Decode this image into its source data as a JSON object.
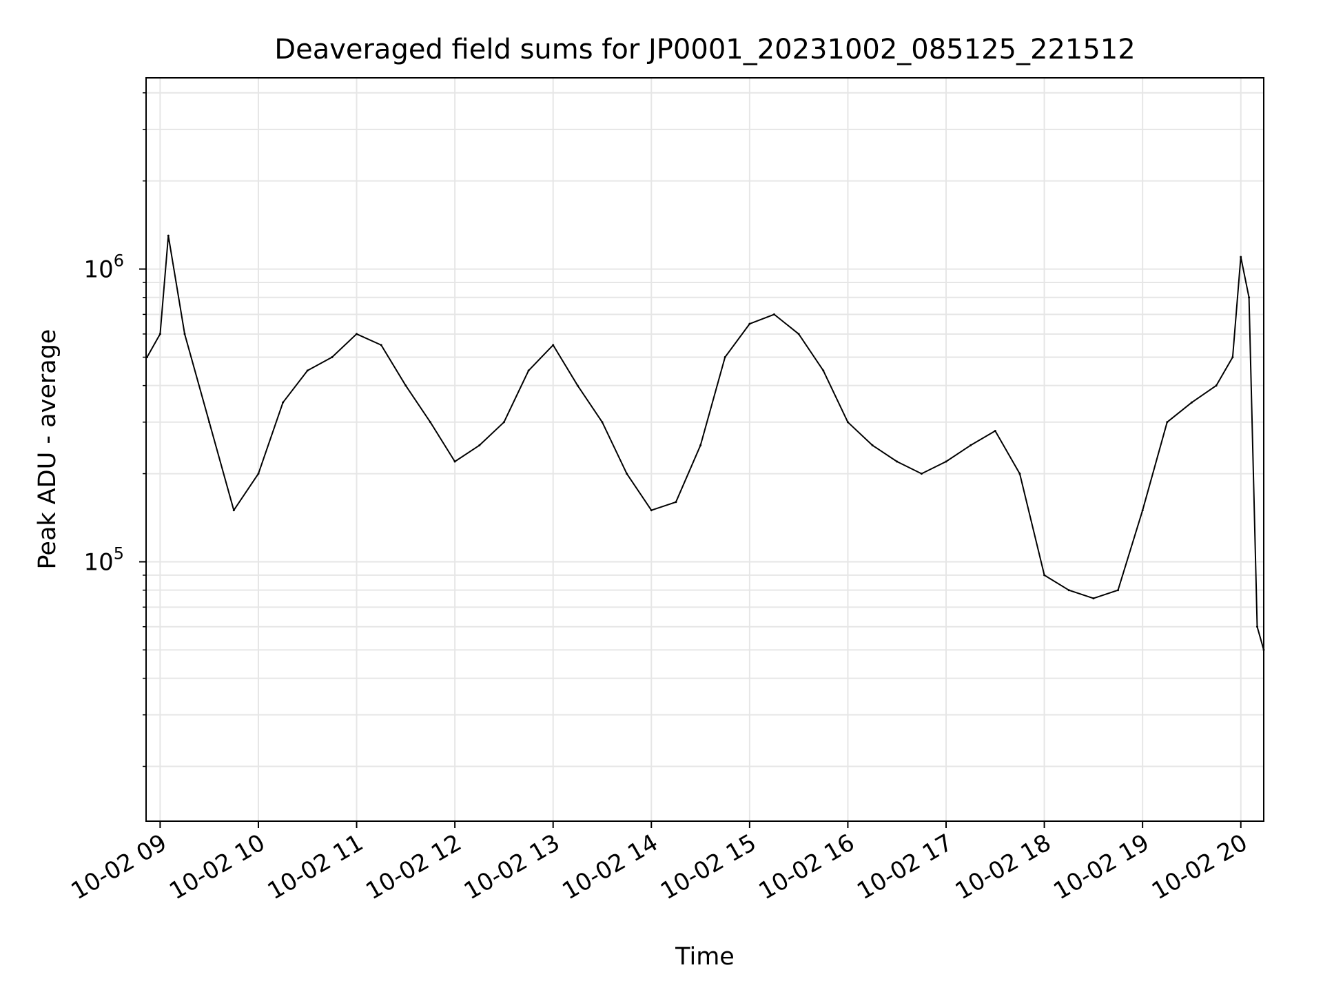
{
  "chart_data": {
    "type": "line",
    "title": "Deaveraged field sums for JP0001_20231002_085125_221512",
    "xlabel": "Time",
    "ylabel": "Peak ADU - average",
    "y_scale": "log",
    "ylim": [
      13000,
      4500000
    ],
    "xlim": [
      "2023-10-02 08:51:25",
      "2023-10-02 20:14:00"
    ],
    "grid": true,
    "line_color": "#000000",
    "grid_color": "#e6e6e6",
    "x_ticks": [
      {
        "label": "10-02 09",
        "value": "2023-10-02 09:00"
      },
      {
        "label": "10-02 10",
        "value": "2023-10-02 10:00"
      },
      {
        "label": "10-02 11",
        "value": "2023-10-02 11:00"
      },
      {
        "label": "10-02 12",
        "value": "2023-10-02 12:00"
      },
      {
        "label": "10-02 13",
        "value": "2023-10-02 13:00"
      },
      {
        "label": "10-02 14",
        "value": "2023-10-02 14:00"
      },
      {
        "label": "10-02 15",
        "value": "2023-10-02 15:00"
      },
      {
        "label": "10-02 16",
        "value": "2023-10-02 16:00"
      },
      {
        "label": "10-02 17",
        "value": "2023-10-02 17:00"
      },
      {
        "label": "10-02 18",
        "value": "2023-10-02 18:00"
      },
      {
        "label": "10-02 19",
        "value": "2023-10-02 19:00"
      },
      {
        "label": "10-02 20",
        "value": "2023-10-02 20:00"
      }
    ],
    "y_major_ticks": [
      {
        "base": "10",
        "exp": "5",
        "value": 100000
      },
      {
        "base": "10",
        "exp": "6",
        "value": 1000000
      }
    ],
    "series": [
      {
        "x": [
          "2023-10-02 08:52",
          "2023-10-02 09:00",
          "2023-10-02 09:05",
          "2023-10-02 09:15",
          "2023-10-02 09:30",
          "2023-10-02 09:45",
          "2023-10-02 10:00",
          "2023-10-02 10:15",
          "2023-10-02 10:30",
          "2023-10-02 10:45",
          "2023-10-02 11:00",
          "2023-10-02 11:15",
          "2023-10-02 11:30",
          "2023-10-02 11:45",
          "2023-10-02 12:00",
          "2023-10-02 12:15",
          "2023-10-02 12:30",
          "2023-10-02 12:45",
          "2023-10-02 13:00",
          "2023-10-02 13:15",
          "2023-10-02 13:30",
          "2023-10-02 13:45",
          "2023-10-02 14:00",
          "2023-10-02 14:15",
          "2023-10-02 14:30",
          "2023-10-02 14:45",
          "2023-10-02 15:00",
          "2023-10-02 15:15",
          "2023-10-02 15:30",
          "2023-10-02 15:45",
          "2023-10-02 16:00",
          "2023-10-02 16:15",
          "2023-10-02 16:30",
          "2023-10-02 16:45",
          "2023-10-02 17:00",
          "2023-10-02 17:15",
          "2023-10-02 17:30",
          "2023-10-02 17:45",
          "2023-10-02 18:00",
          "2023-10-02 18:15",
          "2023-10-02 18:30",
          "2023-10-02 18:45",
          "2023-10-02 19:00",
          "2023-10-02 19:15",
          "2023-10-02 19:30",
          "2023-10-02 19:45",
          "2023-10-02 19:55",
          "2023-10-02 20:00",
          "2023-10-02 20:05",
          "2023-10-02 20:10",
          "2023-10-02 20:14"
        ],
        "values": [
          500000,
          600000,
          1300000,
          600000,
          300000,
          150000,
          200000,
          350000,
          450000,
          500000,
          600000,
          550000,
          400000,
          300000,
          220000,
          250000,
          300000,
          450000,
          550000,
          400000,
          300000,
          200000,
          150000,
          160000,
          250000,
          500000,
          650000,
          700000,
          600000,
          450000,
          300000,
          250000,
          220000,
          200000,
          220000,
          250000,
          280000,
          200000,
          90000,
          80000,
          75000,
          80000,
          150000,
          300000,
          350000,
          400000,
          500000,
          1100000,
          800000,
          60000,
          50000
        ]
      }
    ]
  }
}
